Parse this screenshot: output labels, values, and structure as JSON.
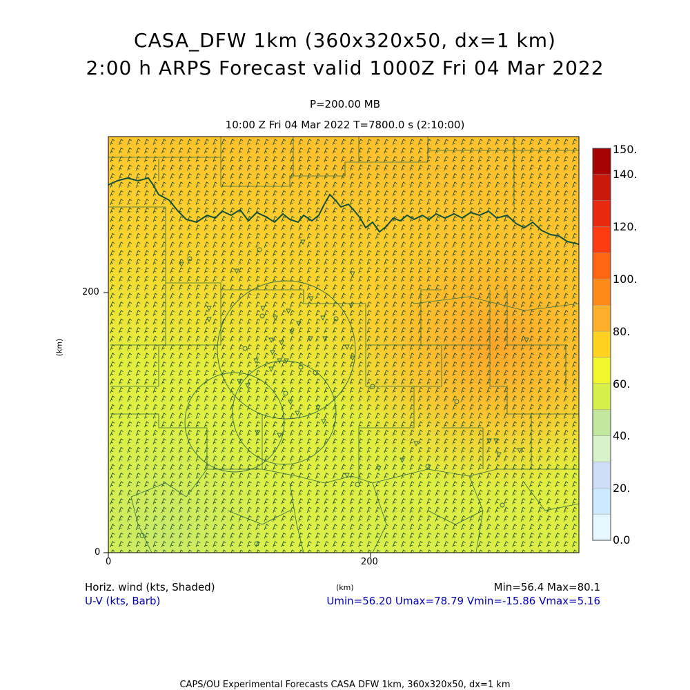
{
  "title": {
    "line1": "CASA_DFW 1km (360x320x50, dx=1 km)",
    "line2": "2:00 h ARPS Forecast valid 1000Z Fri 04 Mar 2022",
    "pressure": "P=200.00 MB",
    "valid_time": "10:00 Z Fri 04 Mar 2022    T=7800.0 s (2:10:00)"
  },
  "axes": {
    "x_ticks": [
      "0",
      "200"
    ],
    "y_ticks": [
      "0",
      "200"
    ],
    "x_unit": "(km)",
    "y_unit": "(km)"
  },
  "colorbar": {
    "levels": [
      "0.0",
      "10",
      "20.",
      "30",
      "40.",
      "50",
      "60.",
      "70",
      "80.",
      "90",
      "100.",
      "110",
      "120.",
      "130",
      "140.",
      "150."
    ],
    "labels": [
      "0.0",
      "20.",
      "40.",
      "60.",
      "80.",
      "100.",
      "120.",
      "140.",
      "150."
    ],
    "colors": [
      "#e6f7ff",
      "#cce9ff",
      "#cfdcf5",
      "#d8f2cc",
      "#c2e8a0",
      "#d7f04a",
      "#f2f72b",
      "#ffd21f",
      "#ffb02a",
      "#ff8a1a",
      "#ff6614",
      "#ff3b12",
      "#e8280f",
      "#c8190c",
      "#a70505"
    ]
  },
  "legend": {
    "field": "Horiz. wind (kts, Shaded)",
    "vector": "U-V (kts, Barb)",
    "minmax": "Min=56.4 Max=80.1",
    "uv_range": "Umin=56.20 Umax=78.79 Vmin=-15.86 Vmax=5.16"
  },
  "footer": "CAPS/OU Experimental Forecasts   CASA DFW 1km, 360x320x50, dx=1 km"
}
